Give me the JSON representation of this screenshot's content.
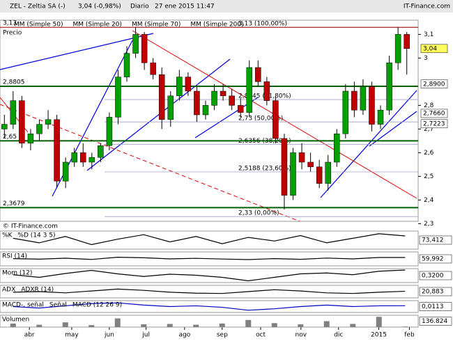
{
  "header": {
    "symbol": "ZEL - Zeltia SA (-)",
    "quote": "3,04 (-0,98%)",
    "period": "Diario",
    "datetime": "27 ene 2015 11:47",
    "brand": "IT-Finance.com"
  },
  "chart_data": {
    "type": "candlestick",
    "price_label": "Precio",
    "copyright": "© IT-Finance.com",
    "legend": [
      {
        "name": "MM (Simple 50)",
        "color": "#aab"
      },
      {
        "name": "MM (Simple 20)",
        "color": "#c00000"
      },
      {
        "name": "MM (Simple 70)",
        "color": "#0000c0"
      },
      {
        "name": "MM (Simple 200)",
        "color": "#006000"
      }
    ],
    "up_color": "#00a000",
    "down_color": "#c00000",
    "open": [
      2.7,
      2.72,
      2.82,
      2.64,
      2.68,
      2.72,
      2.74,
      2.48,
      2.56,
      2.6,
      2.56,
      2.58,
      2.63,
      2.75,
      2.92,
      3.02,
      3.1,
      2.98,
      2.93,
      2.74,
      2.84,
      2.92,
      2.86,
      2.76,
      2.8,
      2.86,
      2.84,
      2.8,
      2.77,
      2.96,
      2.9,
      2.82,
      2.66,
      2.42,
      2.6,
      2.56,
      2.54,
      2.47,
      2.56,
      2.68,
      2.86,
      2.78,
      2.88,
      2.72,
      2.78,
      2.98,
      3.1
    ],
    "high": [
      2.76,
      2.86,
      2.84,
      2.7,
      2.74,
      2.78,
      2.76,
      2.58,
      2.62,
      2.64,
      2.6,
      2.64,
      2.77,
      2.95,
      3.05,
      3.13,
      3.11,
      3.0,
      2.96,
      2.86,
      2.95,
      2.94,
      2.88,
      2.82,
      2.89,
      2.89,
      2.87,
      2.83,
      2.99,
      2.99,
      2.92,
      2.84,
      2.68,
      2.62,
      2.64,
      2.6,
      2.57,
      2.59,
      2.7,
      2.89,
      2.9,
      2.91,
      2.9,
      2.8,
      3.01,
      3.13,
      3.11
    ],
    "low": [
      2.66,
      2.7,
      2.62,
      2.61,
      2.65,
      2.7,
      2.45,
      2.45,
      2.54,
      2.54,
      2.53,
      2.56,
      2.61,
      2.72,
      2.9,
      3.0,
      2.95,
      2.91,
      2.7,
      2.71,
      2.82,
      2.84,
      2.73,
      2.74,
      2.78,
      2.82,
      2.78,
      2.75,
      2.75,
      2.88,
      2.8,
      2.64,
      2.36,
      2.4,
      2.53,
      2.52,
      2.45,
      2.44,
      2.54,
      2.66,
      2.75,
      2.76,
      2.69,
      2.7,
      2.76,
      2.95,
      2.93
    ],
    "close": [
      2.72,
      2.82,
      2.64,
      2.68,
      2.72,
      2.74,
      2.48,
      2.56,
      2.6,
      2.56,
      2.58,
      2.63,
      2.75,
      2.92,
      3.02,
      3.1,
      2.98,
      2.93,
      2.74,
      2.84,
      2.92,
      2.86,
      2.76,
      2.8,
      2.86,
      2.84,
      2.8,
      2.77,
      2.96,
      2.9,
      2.82,
      2.66,
      2.42,
      2.6,
      2.56,
      2.54,
      2.47,
      2.56,
      2.68,
      2.86,
      2.78,
      2.88,
      2.72,
      2.78,
      2.98,
      3.1,
      3.04
    ],
    "xlim": [
      -0.5,
      47.3
    ],
    "xticks": [
      {
        "value": 2.86,
        "label": "abr"
      },
      {
        "value": 7.7,
        "label": "may"
      },
      {
        "value": 12.0,
        "label": "jun"
      },
      {
        "value": 16.2,
        "label": "jul"
      },
      {
        "value": 20.6,
        "label": "ago"
      },
      {
        "value": 24.9,
        "label": "sep"
      },
      {
        "value": 29.3,
        "label": "oct"
      },
      {
        "value": 33.9,
        "label": "nov"
      },
      {
        "value": 38.2,
        "label": "dic"
      },
      {
        "value": 42.8,
        "label": "2015"
      },
      {
        "value": 46.3,
        "label": "feb"
      }
    ],
    "ylim": [
      2.31,
      3.16
    ],
    "yticks": [
      {
        "value": 3.1,
        "label": "3,1"
      },
      3,
      {
        "value": 2.8,
        "label": "2,8"
      },
      {
        "value": 2.7,
        "label": "2,7"
      },
      {
        "value": 2.6,
        "label": "2,6"
      },
      {
        "value": 2.5,
        "label": "2,5"
      },
      {
        "value": 2.4,
        "label": "2,4"
      },
      {
        "value": 2.3,
        "label": "2,3"
      }
    ],
    "fib_levels": [
      {
        "value": 3.13,
        "label": "3,13 (100,00%)"
      },
      {
        "value": 2.8245,
        "label": "2,8245 (61,80%)"
      },
      {
        "value": 2.73,
        "label": "2,73 (50,00%)"
      },
      {
        "value": 2.6356,
        "label": "2,6356 (38,20%)"
      },
      {
        "value": 2.5188,
        "label": "2,5188 (23,60%)"
      },
      {
        "value": 2.33,
        "label": "2,33 (0,00%)"
      }
    ],
    "left_levels": [
      {
        "value": 3.13,
        "label": "3,13"
      },
      {
        "value": 2.8805,
        "label": "2,8805"
      },
      {
        "value": 2.65,
        "label": "2,65"
      },
      {
        "value": 2.3679,
        "label": "2,3679"
      }
    ],
    "right_levels": [
      {
        "value": 3.04,
        "label": "3,04",
        "color": "#ffff60"
      },
      {
        "value": 2.89,
        "label": "2,8900",
        "color": "#fff"
      },
      {
        "value": 2.766,
        "label": "2,7660",
        "color": "#fff"
      },
      {
        "value": 2.7223,
        "label": "2,7223",
        "color": "#fff"
      }
    ],
    "panels": [
      {
        "label": "%K",
        "label2": "%D (14 3 5)",
        "color": "#000",
        "ylim": [
          0,
          100
        ],
        "values": [
          60,
          35,
          70,
          25,
          55,
          80,
          40,
          70,
          30,
          65,
          45,
          75,
          35,
          60,
          85,
          73
        ],
        "last": {
          "value": 73.412,
          "label": "73,412"
        }
      },
      {
        "label": "RSI (14)",
        "color": "#000",
        "ylim": [
          0,
          100
        ],
        "values": [
          52,
          48,
          55,
          46,
          62,
          58,
          50,
          54,
          49,
          45,
          52,
          47,
          56,
          50,
          60,
          60
        ],
        "last": {
          "value": 59.992,
          "label": "59,992"
        }
      },
      {
        "label": "Mom (12)",
        "color": "#000",
        "ylim": [
          -0.4,
          0.4
        ],
        "values": [
          0.05,
          -0.1,
          0.12,
          0.3,
          0.1,
          -0.05,
          0.08,
          0.02,
          -0.1,
          -0.3,
          -0.1,
          0.1,
          0.15,
          0.05,
          0.25,
          0.32
        ],
        "last": {
          "value": 0.32,
          "label": "0,3200"
        }
      },
      {
        "label": "ADX",
        "label2": "ADXR (14)",
        "color": "#000",
        "ylim": [
          0,
          40
        ],
        "values": [
          18,
          20,
          16,
          22,
          28,
          24,
          18,
          15,
          14,
          20,
          26,
          22,
          16,
          14,
          18,
          21
        ],
        "last": {
          "value": 20.883,
          "label": "20,883"
        }
      },
      {
        "label": "MACD-, señal",
        "label2": "Señal",
        "label3": "MACD (12 26 9)",
        "color": "#0000c0",
        "ylim": [
          -0.08,
          0.08
        ],
        "values": [
          0,
          -0.02,
          0.01,
          0.04,
          0.05,
          0.02,
          0,
          0.01,
          -0.01,
          -0.05,
          -0.03,
          0,
          0.02,
          0,
          0.01,
          0.0113
        ],
        "last": {
          "value": 0.0113,
          "label": "0,0113"
        }
      },
      {
        "label": "Volumen",
        "color": "#808080",
        "bars": true,
        "ylim": [
          0,
          3000000
        ],
        "values": [
          900000,
          600000,
          1200000,
          500000,
          2200000,
          700000,
          800000,
          600000,
          900000,
          1800000,
          1000000,
          700000,
          1500000,
          800000,
          2600000,
          136824
        ],
        "last": {
          "value": 136824,
          "label": "136.824"
        }
      }
    ]
  }
}
